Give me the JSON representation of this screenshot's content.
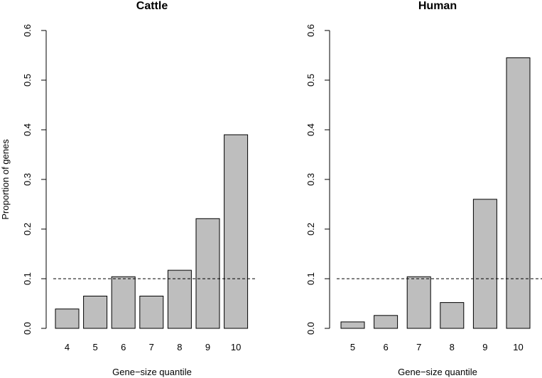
{
  "chart_data": [
    {
      "type": "bar",
      "title": "Cattle",
      "categories": [
        "4",
        "5",
        "6",
        "7",
        "8",
        "9",
        "10"
      ],
      "values": [
        0.039,
        0.065,
        0.104,
        0.065,
        0.117,
        0.221,
        0.39
      ],
      "xlabel": "Gene−size quantile",
      "ylabel": "Proportion of genes",
      "ylim": [
        0,
        0.6
      ],
      "yticks": [
        "0.0",
        "0.1",
        "0.2",
        "0.3",
        "0.4",
        "0.5",
        "0.6"
      ],
      "reference_line": 0.1,
      "bar_color": "#bebebe"
    },
    {
      "type": "bar",
      "title": "Human",
      "categories": [
        "5",
        "6",
        "7",
        "8",
        "9",
        "10"
      ],
      "values": [
        0.013,
        0.026,
        0.104,
        0.052,
        0.26,
        0.545
      ],
      "xlabel": "Gene−size quantile",
      "ylabel": "",
      "ylim": [
        0,
        0.6
      ],
      "yticks": [
        "0.0",
        "0.1",
        "0.2",
        "0.3",
        "0.4",
        "0.5",
        "0.6"
      ],
      "reference_line": 0.1,
      "bar_color": "#bebebe"
    }
  ]
}
